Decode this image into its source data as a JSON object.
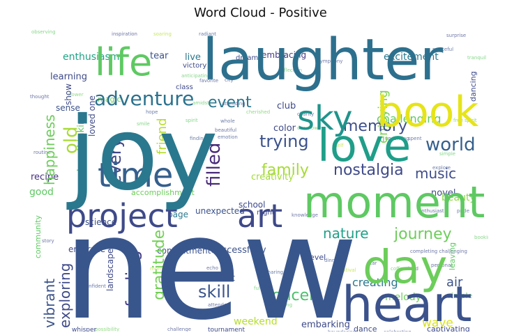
{
  "chart_data": {
    "type": "wordcloud",
    "title": "Word Cloud - Positive",
    "background": "#ffffff",
    "colormap": "viridis",
    "words": [
      {
        "text": "new",
        "color": "#39568c"
      },
      {
        "text": "joy",
        "color": "#2a788e"
      },
      {
        "text": "laughter",
        "color": "#2d708e"
      },
      {
        "text": "moment",
        "color": "#5ec962"
      },
      {
        "text": "heart",
        "color": "#3b528b"
      },
      {
        "text": "love",
        "color": "#1f9e89"
      },
      {
        "text": "book",
        "color": "#e6e419"
      },
      {
        "text": "day",
        "color": "#6ccd5a"
      },
      {
        "text": "project",
        "color": "#3e4a89"
      },
      {
        "text": "art",
        "color": "#3e4989"
      },
      {
        "text": "life",
        "color": "#5ec962"
      },
      {
        "text": "time",
        "color": "#355f8d"
      },
      {
        "text": "sky",
        "color": "#1f948c"
      },
      {
        "text": "adventure",
        "color": "#2c728e"
      },
      {
        "text": "happiness",
        "color": "#6ccd5a"
      },
      {
        "text": "family",
        "color": "#a5db36"
      },
      {
        "text": "nostalgia",
        "color": "#3e4a89"
      },
      {
        "text": "world",
        "color": "#35608d"
      },
      {
        "text": "memory",
        "color": "#3d4e8a"
      },
      {
        "text": "every",
        "color": "#3f4788"
      },
      {
        "text": "old",
        "color": "#a8db34"
      },
      {
        "text": "filled",
        "color": "#482979"
      },
      {
        "text": "friend",
        "color": "#b5de2b"
      },
      {
        "text": "trying",
        "color": "#3b528b"
      },
      {
        "text": "music",
        "color": "#3e4c8a"
      },
      {
        "text": "event",
        "color": "#2a768e"
      },
      {
        "text": "journey",
        "color": "#6ccd5a"
      },
      {
        "text": "nature",
        "color": "#1fa187"
      },
      {
        "text": "skill",
        "color": "#3a548c"
      },
      {
        "text": "feeling",
        "color": "#443983"
      },
      {
        "text": "vibrant",
        "color": "#3b528b"
      },
      {
        "text": "exploring",
        "color": "#3e4a89"
      },
      {
        "text": "gratitude",
        "color": "#73d056"
      },
      {
        "text": "concert",
        "color": "#4ac16d"
      },
      {
        "text": "creating",
        "color": "#2a778e"
      },
      {
        "text": "air",
        "color": "#3b528b"
      },
      {
        "text": "enjoying",
        "color": "#7ad151"
      },
      {
        "text": "challenging",
        "color": "#5ec962"
      },
      {
        "text": "excitement",
        "color": "#2a788e"
      },
      {
        "text": "enthusiasm",
        "color": "#20a386"
      },
      {
        "text": "embracing",
        "color": "#453882"
      },
      {
        "text": "learning",
        "color": "#3e4a89"
      },
      {
        "text": "recipe",
        "color": "#46317e"
      },
      {
        "text": "breathtaking",
        "color": "#5cc863"
      },
      {
        "text": "sense",
        "color": "#3b528b"
      },
      {
        "text": "color",
        "color": "#3e4a89"
      },
      {
        "text": "creativity",
        "color": "#a2da37"
      },
      {
        "text": "beauty",
        "color": "#8fd744"
      },
      {
        "text": "novel",
        "color": "#3e4a89"
      },
      {
        "text": "good",
        "color": "#5ec962"
      },
      {
        "text": "accomplishment",
        "color": "#6ccd5a"
      },
      {
        "text": "school",
        "color": "#3e4989"
      },
      {
        "text": "science",
        "color": "#3b528b"
      },
      {
        "text": "page",
        "color": "#2a788e"
      },
      {
        "text": "unexpected",
        "color": "#3b528b"
      },
      {
        "text": "embrace",
        "color": "#3e4a89"
      },
      {
        "text": "contentment",
        "color": "#3b528b"
      },
      {
        "text": "successfully",
        "color": "#3b528b"
      },
      {
        "text": "sunset",
        "color": "#3b528b"
      },
      {
        "text": "landscape",
        "color": "#3e4a89"
      },
      {
        "text": "melody",
        "color": "#6ccd5a"
      },
      {
        "text": "wave",
        "color": "#d8e219"
      },
      {
        "text": "weekend",
        "color": "#b5de2b"
      },
      {
        "text": "embarking",
        "color": "#3e4a89"
      },
      {
        "text": "dance",
        "color": "#3e4a89"
      },
      {
        "text": "captivating",
        "color": "#3e4a89"
      },
      {
        "text": "community",
        "color": "#5ec962"
      },
      {
        "text": "show",
        "color": "#3e4a89"
      },
      {
        "text": "loved one",
        "color": "#3e4a89"
      },
      {
        "text": "magic",
        "color": "#6ccd5a"
      },
      {
        "text": "tear",
        "color": "#3b528b"
      },
      {
        "text": "live",
        "color": "#2a788e"
      },
      {
        "text": "victory",
        "color": "#3e4a89"
      },
      {
        "text": "dream",
        "color": "#3e4a89"
      },
      {
        "text": "class",
        "color": "#3e4a89"
      },
      {
        "text": "club",
        "color": "#3e4a89"
      },
      {
        "text": "dancing",
        "color": "#3e4a89"
      },
      {
        "text": "leaving",
        "color": "#5ec962"
      },
      {
        "text": "simple",
        "color": "#6ccd5a"
      },
      {
        "text": "level",
        "color": "#3e4a89"
      },
      {
        "text": "night",
        "color": "#3e4a89"
      },
      {
        "text": "whisper",
        "color": "#3e4a89"
      },
      {
        "text": "tournament",
        "color": "#3e4a89"
      }
    ]
  }
}
